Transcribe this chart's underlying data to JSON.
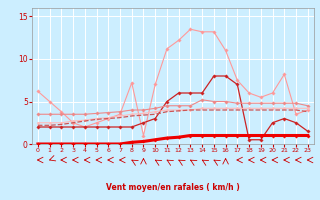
{
  "x": [
    0,
    1,
    2,
    3,
    4,
    5,
    6,
    7,
    8,
    9,
    10,
    11,
    12,
    13,
    14,
    15,
    16,
    17,
    18,
    19,
    20,
    21,
    22,
    23
  ],
  "series": [
    {
      "name": "light_pink_peak",
      "color": "#ff9999",
      "linewidth": 0.8,
      "markersize": 1.8,
      "marker": "D",
      "values": [
        6.2,
        5.0,
        3.8,
        2.5,
        2.0,
        2.5,
        3.0,
        3.5,
        7.2,
        1.0,
        7.0,
        11.2,
        12.2,
        13.5,
        13.2,
        13.2,
        11.0,
        7.5,
        6.0,
        5.5,
        6.0,
        8.2,
        3.5,
        4.0
      ]
    },
    {
      "name": "dark_red_mid",
      "color": "#cc2222",
      "linewidth": 0.9,
      "markersize": 1.8,
      "marker": "D",
      "values": [
        2.0,
        2.0,
        2.0,
        2.0,
        2.0,
        2.0,
        2.0,
        2.0,
        2.0,
        2.5,
        3.0,
        5.0,
        6.0,
        6.0,
        6.0,
        8.0,
        8.0,
        7.0,
        0.5,
        0.5,
        2.5,
        3.0,
        2.5,
        1.5
      ]
    },
    {
      "name": "medium_pink_gradual",
      "color": "#ee8888",
      "linewidth": 0.8,
      "markersize": 1.8,
      "marker": "D",
      "values": [
        3.5,
        3.5,
        3.5,
        3.5,
        3.5,
        3.6,
        3.7,
        3.8,
        4.0,
        4.0,
        4.2,
        4.5,
        4.5,
        4.5,
        5.2,
        5.0,
        5.0,
        4.8,
        4.8,
        4.8,
        4.8,
        4.8,
        4.8,
        4.5
      ]
    },
    {
      "name": "solid_rising_faint",
      "color": "#ffbbbb",
      "linewidth": 0.8,
      "markersize": 1.5,
      "marker": "D",
      "values": [
        2.5,
        2.5,
        2.5,
        2.7,
        2.8,
        3.0,
        3.1,
        3.3,
        3.5,
        3.6,
        3.8,
        4.0,
        4.0,
        4.0,
        4.2,
        4.2,
        4.2,
        4.2,
        4.2,
        4.2,
        4.2,
        4.2,
        4.2,
        4.2
      ]
    },
    {
      "name": "dashed_mid",
      "color": "#cc5555",
      "linewidth": 0.9,
      "markersize": 0,
      "marker": null,
      "linestyle": "--",
      "values": [
        2.2,
        2.2,
        2.3,
        2.5,
        2.7,
        2.9,
        3.0,
        3.1,
        3.3,
        3.4,
        3.5,
        3.8,
        3.9,
        4.0,
        4.0,
        4.0,
        4.0,
        4.0,
        4.0,
        4.0,
        4.0,
        4.0,
        4.0,
        3.8
      ]
    },
    {
      "name": "bold_red_bottom",
      "color": "#ee0000",
      "linewidth": 2.2,
      "markersize": 1.8,
      "marker": "D",
      "values": [
        0.0,
        0.0,
        0.0,
        0.0,
        0.0,
        0.0,
        0.0,
        0.0,
        0.2,
        0.3,
        0.5,
        0.7,
        0.8,
        1.0,
        1.0,
        1.0,
        1.0,
        1.0,
        1.0,
        1.0,
        1.0,
        1.0,
        1.0,
        1.0
      ]
    }
  ],
  "arrow_directions": [
    180,
    210,
    180,
    180,
    180,
    180,
    180,
    180,
    135,
    90,
    135,
    135,
    135,
    135,
    135,
    135,
    90,
    180,
    180,
    180,
    180,
    180,
    180,
    180
  ],
  "xlabel": "Vent moyen/en rafales ( km/h )",
  "ylim": [
    0,
    16
  ],
  "xlim": [
    -0.5,
    23.5
  ],
  "yticks": [
    0,
    5,
    10,
    15
  ],
  "xticks": [
    0,
    1,
    2,
    3,
    4,
    5,
    6,
    7,
    8,
    9,
    10,
    11,
    12,
    13,
    14,
    15,
    16,
    17,
    18,
    19,
    20,
    21,
    22,
    23
  ],
  "bg_color": "#cceeff",
  "grid_color": "#ffffff",
  "tick_color": "#cc0000",
  "label_color": "#cc0000"
}
